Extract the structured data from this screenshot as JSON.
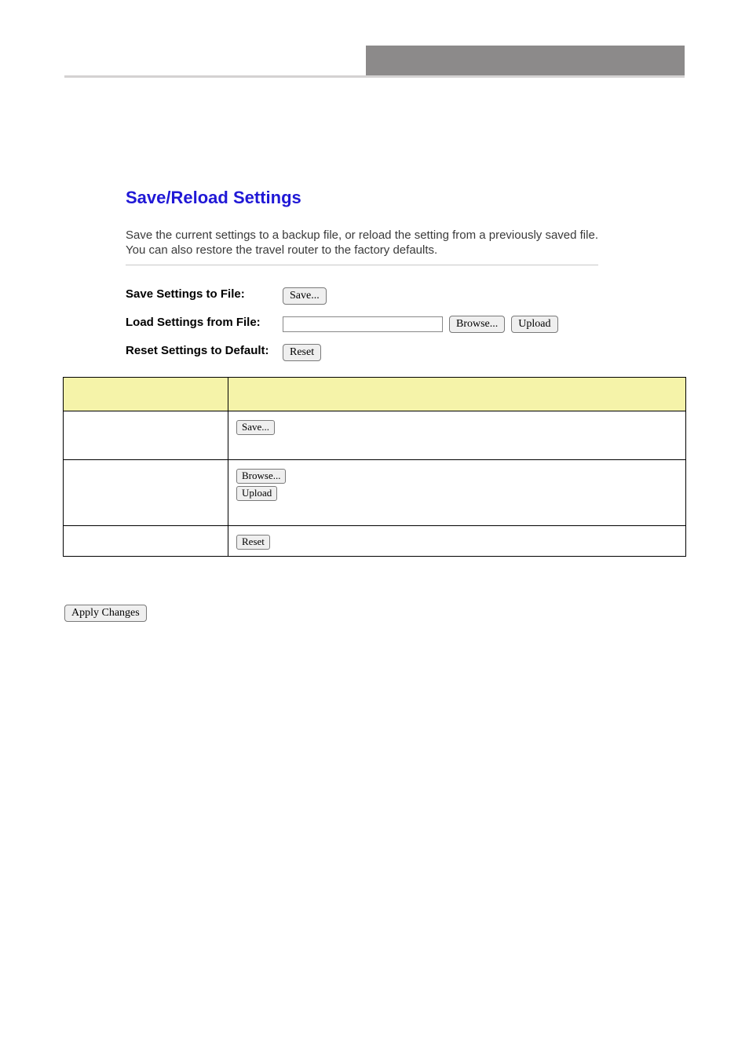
{
  "panel": {
    "title": "Save/Reload Settings",
    "description": "Save the current settings to a backup file, or reload the setting from a previously saved file. You can also restore the travel router to the factory defaults."
  },
  "form": {
    "save_label": "Save Settings to File:",
    "save_button": "Save...",
    "load_label": "Load Settings from File:",
    "browse_button": "Browse...",
    "upload_button": "Upload",
    "reset_label": "Reset Settings to Default:",
    "reset_button": "Reset"
  },
  "table": {
    "row_save_btn": "Save...",
    "row_browse_btn": "Browse...",
    "row_upload_btn": "Upload",
    "row_reset_btn": "Reset"
  },
  "apply": {
    "button": "Apply Changes"
  }
}
